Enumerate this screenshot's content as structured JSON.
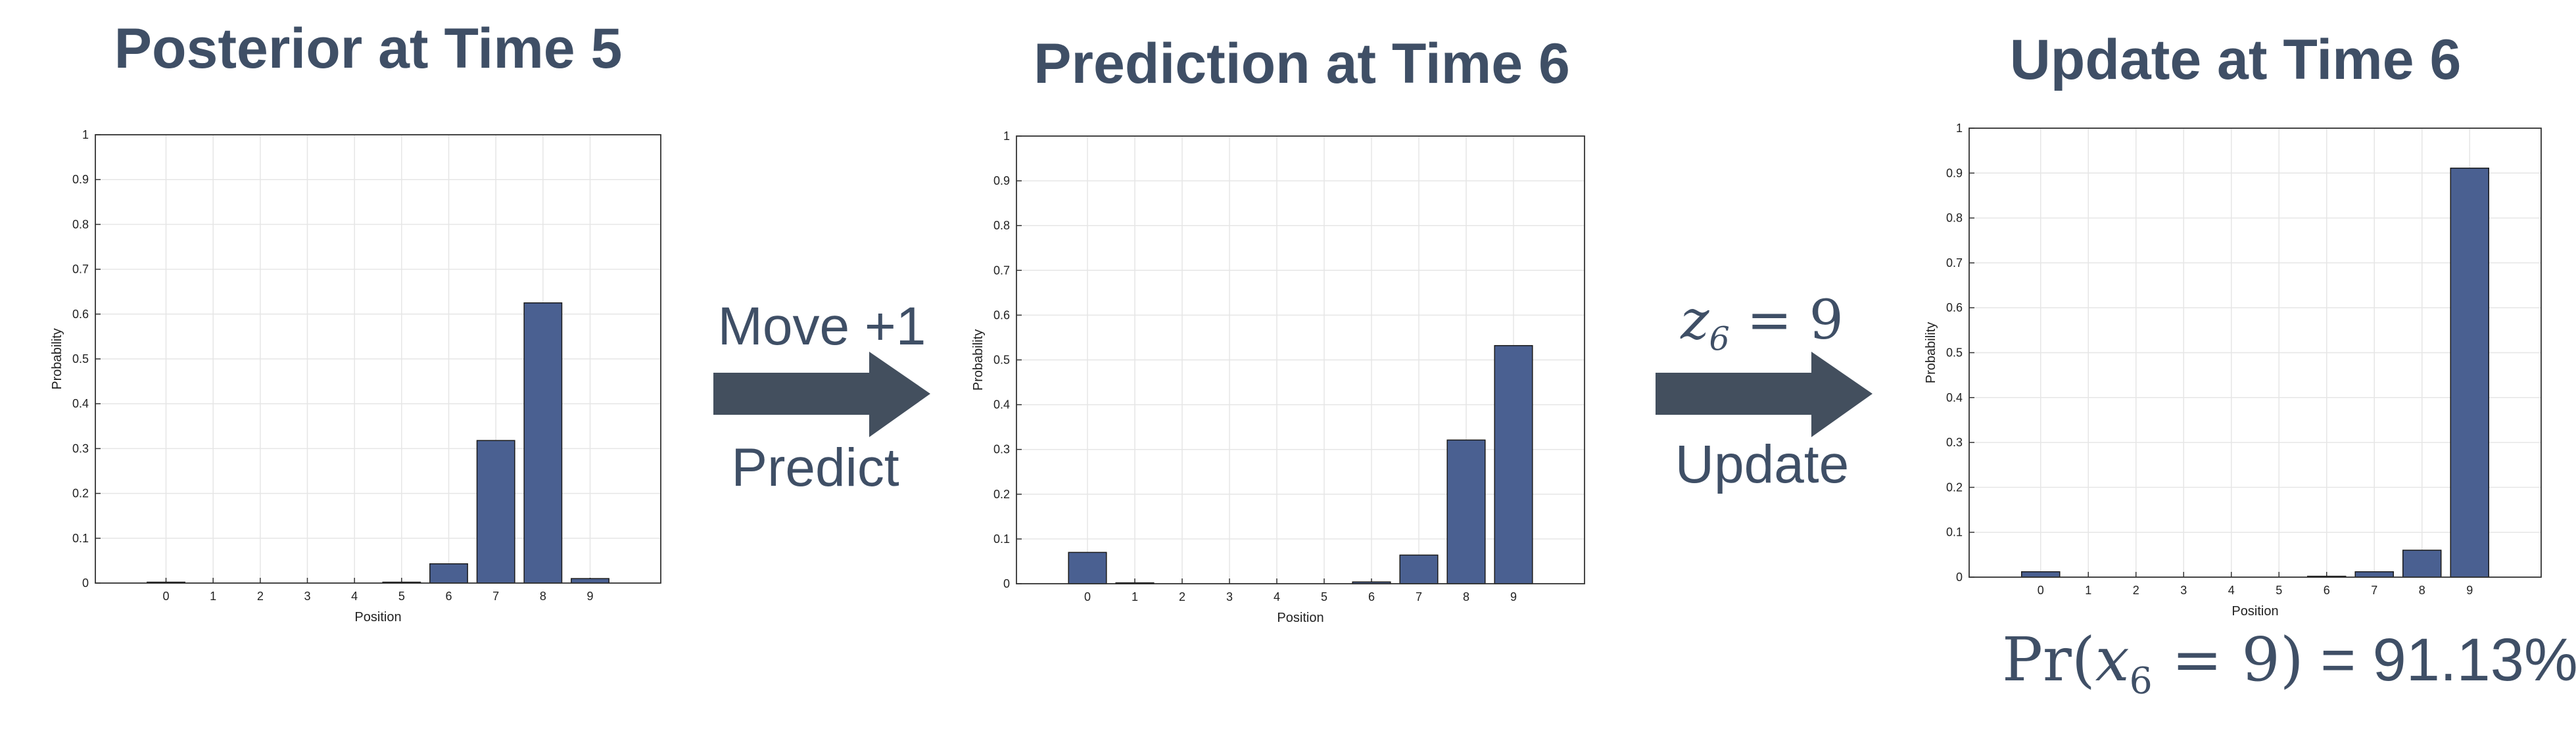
{
  "panels": [
    {
      "title": "Posterior at Time 5",
      "chart_data": {
        "type": "bar",
        "categories": [
          "0",
          "1",
          "2",
          "3",
          "4",
          "5",
          "6",
          "7",
          "8",
          "9"
        ],
        "values": [
          0.002,
          0.0,
          0.0,
          0.0,
          0.0,
          0.002,
          0.043,
          0.318,
          0.625,
          0.01
        ],
        "xlabel": "Position",
        "ylabel": "Probability",
        "ylim": [
          0,
          1
        ],
        "yticks": [
          "0",
          "0.1",
          "0.2",
          "0.3",
          "0.4",
          "0.5",
          "0.6",
          "0.7",
          "0.8",
          "0.9",
          "1"
        ],
        "grid": true,
        "bar_color": "#4a6091"
      }
    },
    {
      "title": "Prediction at Time 6",
      "chart_data": {
        "type": "bar",
        "categories": [
          "0",
          "1",
          "2",
          "3",
          "4",
          "5",
          "6",
          "7",
          "8",
          "9"
        ],
        "values": [
          0.07,
          0.002,
          0.0,
          0.0,
          0.0,
          0.0,
          0.004,
          0.064,
          0.321,
          0.532
        ],
        "xlabel": "Position",
        "ylabel": "Probability",
        "ylim": [
          0,
          1
        ],
        "yticks": [
          "0",
          "0.1",
          "0.2",
          "0.3",
          "0.4",
          "0.5",
          "0.6",
          "0.7",
          "0.8",
          "0.9",
          "1"
        ],
        "grid": true,
        "bar_color": "#4a6091"
      }
    },
    {
      "title": "Update at Time 6",
      "chart_data": {
        "type": "bar",
        "categories": [
          "0",
          "1",
          "2",
          "3",
          "4",
          "5",
          "6",
          "7",
          "8",
          "9"
        ],
        "values": [
          0.012,
          0.0,
          0.0,
          0.0,
          0.0,
          0.0,
          0.002,
          0.012,
          0.06,
          0.911
        ],
        "xlabel": "Position",
        "ylabel": "Probability",
        "ylim": [
          0,
          1
        ],
        "yticks": [
          "0",
          "0.1",
          "0.2",
          "0.3",
          "0.4",
          "0.5",
          "0.6",
          "0.7",
          "0.8",
          "0.9",
          "1"
        ],
        "grid": true,
        "bar_color": "#4a6091"
      }
    }
  ],
  "steps": {
    "predict": {
      "top": "Move +1",
      "bottom": "Predict"
    },
    "update": {
      "top_var": "z",
      "top_sub": "6",
      "top_rest": " = 9",
      "bottom": "Update"
    }
  },
  "result": {
    "prefix": "Pr(",
    "var": "x",
    "sub": "6",
    "rest": " = 9)",
    "value_text": " = 91.13%"
  },
  "colors": {
    "text": "#3f4f66",
    "arrow": "#434f5e",
    "bar": "#4a6091"
  }
}
